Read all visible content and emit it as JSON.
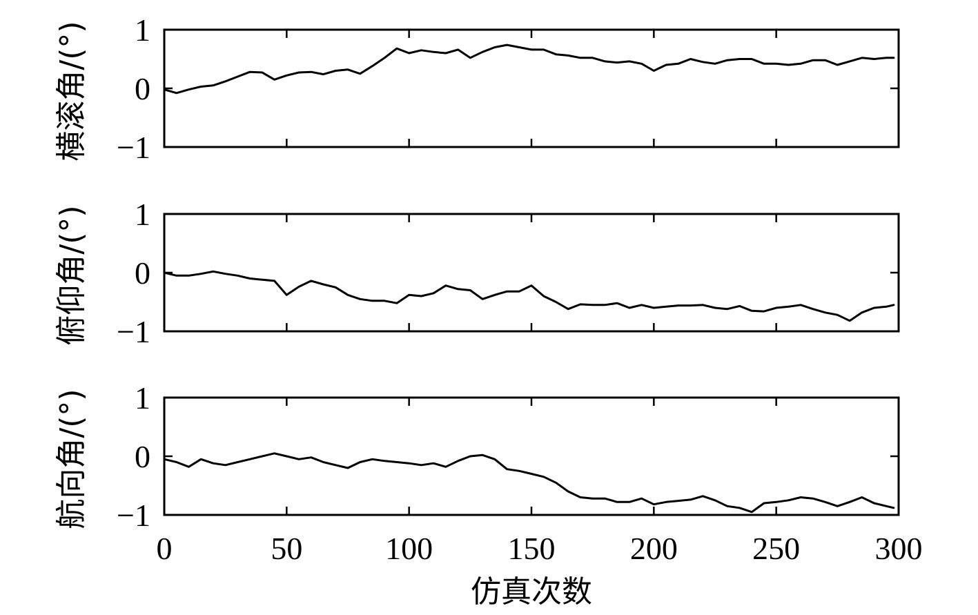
{
  "chart_data": {
    "type": "line",
    "xlabel": "仿真次数",
    "xlim": [
      0,
      300
    ],
    "xticks": [
      0,
      50,
      100,
      150,
      200,
      250,
      300
    ],
    "grid": false,
    "subplots": [
      {
        "ylabel": "横滚角/(°)",
        "ylim": [
          -1,
          1
        ],
        "yticks": [
          -1,
          0,
          1
        ],
        "ytick_labels": [
          "−1",
          "0",
          "1"
        ],
        "series": [
          {
            "x": [
              0,
              5,
              10,
              15,
              20,
              25,
              30,
              35,
              40,
              45,
              50,
              55,
              60,
              65,
              70,
              75,
              80,
              85,
              90,
              95,
              100,
              105,
              110,
              115,
              120,
              125,
              130,
              135,
              140,
              145,
              150,
              155,
              160,
              165,
              170,
              175,
              180,
              185,
              190,
              195,
              200,
              205,
              210,
              215,
              220,
              225,
              230,
              235,
              240,
              245,
              250,
              255,
              260,
              265,
              270,
              275,
              280,
              285,
              290,
              295,
              298
            ],
            "values": [
              -0.02,
              -0.08,
              -0.02,
              0.03,
              0.05,
              0.12,
              0.2,
              0.28,
              0.27,
              0.15,
              0.22,
              0.27,
              0.28,
              0.24,
              0.3,
              0.32,
              0.25,
              0.38,
              0.52,
              0.68,
              0.6,
              0.65,
              0.62,
              0.6,
              0.66,
              0.52,
              0.62,
              0.7,
              0.74,
              0.7,
              0.66,
              0.66,
              0.58,
              0.56,
              0.52,
              0.52,
              0.46,
              0.44,
              0.46,
              0.42,
              0.3,
              0.4,
              0.42,
              0.5,
              0.45,
              0.42,
              0.48,
              0.5,
              0.5,
              0.42,
              0.42,
              0.4,
              0.42,
              0.48,
              0.48,
              0.4,
              0.46,
              0.52,
              0.5,
              0.52,
              0.52
            ]
          }
        ]
      },
      {
        "ylabel": "俯仰角/(°)",
        "ylim": [
          -1,
          1
        ],
        "yticks": [
          -1,
          0,
          1
        ],
        "ytick_labels": [
          "−1",
          "0",
          "1"
        ],
        "series": [
          {
            "x": [
              0,
              5,
              10,
              15,
              20,
              25,
              30,
              35,
              40,
              45,
              50,
              55,
              60,
              65,
              70,
              75,
              80,
              85,
              90,
              95,
              100,
              105,
              110,
              115,
              120,
              125,
              130,
              135,
              140,
              145,
              150,
              155,
              160,
              165,
              170,
              175,
              180,
              185,
              190,
              195,
              200,
              205,
              210,
              215,
              220,
              225,
              230,
              235,
              240,
              245,
              250,
              255,
              260,
              265,
              270,
              275,
              280,
              285,
              290,
              295,
              298
            ],
            "values": [
              0.0,
              -0.05,
              -0.05,
              -0.02,
              0.02,
              -0.02,
              -0.05,
              -0.1,
              -0.12,
              -0.14,
              -0.38,
              -0.24,
              -0.14,
              -0.2,
              -0.25,
              -0.38,
              -0.45,
              -0.48,
              -0.48,
              -0.52,
              -0.38,
              -0.4,
              -0.35,
              -0.22,
              -0.28,
              -0.3,
              -0.45,
              -0.38,
              -0.32,
              -0.32,
              -0.22,
              -0.4,
              -0.5,
              -0.62,
              -0.54,
              -0.55,
              -0.55,
              -0.52,
              -0.6,
              -0.55,
              -0.6,
              -0.58,
              -0.56,
              -0.56,
              -0.55,
              -0.6,
              -0.62,
              -0.57,
              -0.65,
              -0.66,
              -0.6,
              -0.58,
              -0.55,
              -0.62,
              -0.68,
              -0.72,
              -0.82,
              -0.68,
              -0.6,
              -0.58,
              -0.55
            ]
          }
        ]
      },
      {
        "ylabel": "航向角/(°)",
        "ylim": [
          -1,
          1
        ],
        "yticks": [
          -1,
          0,
          1
        ],
        "ytick_labels": [
          "−1",
          "0",
          "1"
        ],
        "series": [
          {
            "x": [
              0,
              5,
              10,
              15,
              20,
              25,
              30,
              35,
              40,
              45,
              50,
              55,
              60,
              65,
              70,
              75,
              80,
              85,
              90,
              95,
              100,
              105,
              110,
              115,
              120,
              125,
              130,
              135,
              140,
              145,
              150,
              155,
              160,
              165,
              170,
              175,
              180,
              185,
              190,
              195,
              200,
              205,
              210,
              215,
              220,
              225,
              230,
              235,
              240,
              245,
              250,
              255,
              260,
              265,
              270,
              275,
              280,
              285,
              290,
              295,
              298
            ],
            "values": [
              -0.05,
              -0.1,
              -0.18,
              -0.05,
              -0.12,
              -0.15,
              -0.1,
              -0.05,
              0.0,
              0.05,
              0.0,
              -0.05,
              -0.02,
              -0.1,
              -0.15,
              -0.2,
              -0.1,
              -0.05,
              -0.08,
              -0.1,
              -0.12,
              -0.15,
              -0.12,
              -0.18,
              -0.08,
              0.0,
              0.02,
              -0.05,
              -0.22,
              -0.25,
              -0.3,
              -0.35,
              -0.45,
              -0.6,
              -0.7,
              -0.72,
              -0.72,
              -0.78,
              -0.78,
              -0.72,
              -0.82,
              -0.78,
              -0.76,
              -0.74,
              -0.68,
              -0.75,
              -0.85,
              -0.88,
              -0.95,
              -0.8,
              -0.78,
              -0.75,
              -0.7,
              -0.72,
              -0.78,
              -0.85,
              -0.78,
              -0.7,
              -0.8,
              -0.85,
              -0.88
            ]
          }
        ]
      }
    ]
  }
}
